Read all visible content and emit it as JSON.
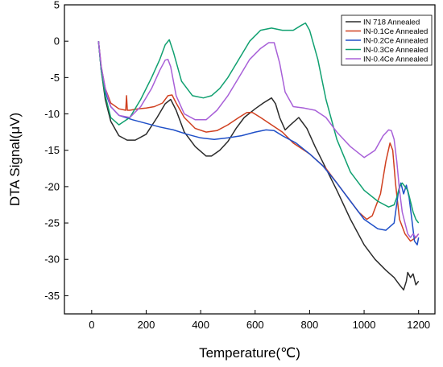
{
  "chart_data": {
    "type": "line",
    "title": "",
    "xlabel": "Temperature(℃)",
    "ylabel": "DTA Signal(μV)",
    "xlim": [
      -100,
      1260
    ],
    "ylim": [
      -37.5,
      5
    ],
    "xticks": [
      0,
      200,
      400,
      600,
      800,
      1000,
      1200
    ],
    "yticks": [
      5,
      0,
      -5,
      -10,
      -15,
      -20,
      -25,
      -30,
      -35
    ],
    "grid": false,
    "legend_position": "top-right",
    "series": [
      {
        "name": "IN 718 Annealed",
        "color": "#2b2b2b",
        "x": [
          25,
          35,
          50,
          70,
          100,
          130,
          160,
          200,
          240,
          270,
          290,
          310,
          340,
          380,
          420,
          440,
          470,
          500,
          530,
          560,
          600,
          630,
          660,
          675,
          690,
          710,
          730,
          760,
          790,
          820,
          860,
          900,
          950,
          1000,
          1040,
          1080,
          1110,
          1130,
          1145,
          1155,
          1160,
          1170,
          1180,
          1190,
          1200
        ],
        "y": [
          0,
          -4,
          -8,
          -11,
          -13,
          -13.6,
          -13.6,
          -12.8,
          -10.5,
          -8.6,
          -8,
          -9.5,
          -12.5,
          -14.5,
          -15.8,
          -15.8,
          -15,
          -13.8,
          -12,
          -10.5,
          -9.3,
          -8.5,
          -7.8,
          -8.6,
          -10.5,
          -12.2,
          -11.5,
          -10.5,
          -12,
          -14.5,
          -17.5,
          -20.5,
          -24.5,
          -28,
          -30,
          -31.5,
          -32.5,
          -33.5,
          -34.2,
          -33,
          -31.8,
          -32.5,
          -32,
          -33.5,
          -33
        ]
      },
      {
        "name": "IN-0.1Ce Annealed",
        "color": "#d04020",
        "x": [
          25,
          35,
          50,
          70,
          100,
          125,
          128,
          131,
          140,
          170,
          200,
          230,
          260,
          280,
          295,
          310,
          340,
          380,
          420,
          460,
          500,
          540,
          570,
          590,
          620,
          660,
          700,
          740,
          800,
          860,
          920,
          980,
          1010,
          1030,
          1060,
          1080,
          1095,
          1105,
          1115,
          1130,
          1150,
          1170,
          1190,
          1200
        ],
        "y": [
          0,
          -3.5,
          -6.5,
          -8.5,
          -9.3,
          -9.5,
          -7.5,
          -9.5,
          -9.5,
          -9.3,
          -9.2,
          -9,
          -8.5,
          -7.5,
          -7.4,
          -8.5,
          -10.5,
          -12,
          -12.5,
          -12.3,
          -11.5,
          -10.5,
          -9.8,
          -9.8,
          -10.5,
          -11.5,
          -12.5,
          -14,
          -15.5,
          -17.5,
          -20.5,
          -23.5,
          -24.5,
          -24,
          -21,
          -16.5,
          -14,
          -15,
          -19.5,
          -24.5,
          -26.5,
          -27.5,
          -27,
          -26.5
        ]
      },
      {
        "name": "IN-0.2Ce Annealed",
        "color": "#2050c8",
        "x": [
          25,
          35,
          50,
          70,
          100,
          150,
          200,
          250,
          300,
          350,
          400,
          450,
          500,
          550,
          600,
          640,
          670,
          700,
          750,
          800,
          850,
          900,
          950,
          1000,
          1050,
          1080,
          1110,
          1125,
          1135,
          1145,
          1155,
          1165,
          1175,
          1185,
          1195,
          1200
        ],
        "y": [
          0,
          -4,
          -7,
          -9,
          -10.2,
          -10.8,
          -11.3,
          -11.8,
          -12.2,
          -12.8,
          -13.3,
          -13.5,
          -13.3,
          -13,
          -12.5,
          -12.2,
          -12.3,
          -13,
          -14,
          -15.5,
          -17.2,
          -19.5,
          -22,
          -24.5,
          -25.8,
          -26,
          -25,
          -21,
          -19.5,
          -21,
          -19.8,
          -21.5,
          -24.5,
          -27.5,
          -28,
          -27
        ]
      },
      {
        "name": "IN-0.3Ce Annealed",
        "color": "#10a070",
        "x": [
          25,
          35,
          50,
          70,
          100,
          140,
          180,
          220,
          250,
          270,
          285,
          300,
          330,
          370,
          410,
          440,
          470,
          500,
          540,
          580,
          620,
          660,
          700,
          740,
          770,
          785,
          800,
          830,
          860,
          900,
          950,
          1000,
          1050,
          1090,
          1110,
          1120,
          1130,
          1140,
          1150,
          1160,
          1170,
          1180,
          1190,
          1200
        ],
        "y": [
          0,
          -4,
          -7.5,
          -10.5,
          -11.5,
          -10.5,
          -8,
          -5,
          -2.5,
          -0.5,
          0.2,
          -1.5,
          -5.5,
          -7.5,
          -7.8,
          -7.5,
          -6.5,
          -5,
          -2.5,
          0,
          1.5,
          1.8,
          1.5,
          1.5,
          2.2,
          2.5,
          1.5,
          -2.5,
          -8,
          -13.5,
          -18,
          -20.5,
          -22,
          -22.8,
          -22.5,
          -21.5,
          -20,
          -19.5,
          -20,
          -20.5,
          -22,
          -23.5,
          -24.5,
          -25
        ]
      },
      {
        "name": "IN-0.4Ce Annealed",
        "color": "#a860d8",
        "x": [
          25,
          35,
          50,
          70,
          100,
          140,
          180,
          220,
          250,
          270,
          280,
          290,
          310,
          340,
          380,
          420,
          460,
          500,
          540,
          580,
          620,
          650,
          670,
          690,
          710,
          740,
          780,
          820,
          860,
          900,
          950,
          1000,
          1040,
          1070,
          1090,
          1100,
          1110,
          1120,
          1130,
          1140,
          1150,
          1160,
          1170,
          1180,
          1190,
          1200
        ],
        "y": [
          0,
          -3.5,
          -6.5,
          -9,
          -10.2,
          -10.5,
          -9,
          -6.5,
          -4,
          -2.6,
          -2.5,
          -3.5,
          -7.5,
          -10,
          -10.8,
          -10.8,
          -9.5,
          -7.5,
          -5,
          -2.5,
          -1,
          -0.2,
          -0.2,
          -3,
          -7,
          -9,
          -9.2,
          -9.5,
          -10.5,
          -12.5,
          -14.5,
          -16,
          -15,
          -13,
          -12.2,
          -12.3,
          -13.5,
          -16.5,
          -20.5,
          -23.5,
          -25,
          -26.5,
          -27,
          -26.5,
          -27,
          -26.5
        ]
      }
    ]
  }
}
